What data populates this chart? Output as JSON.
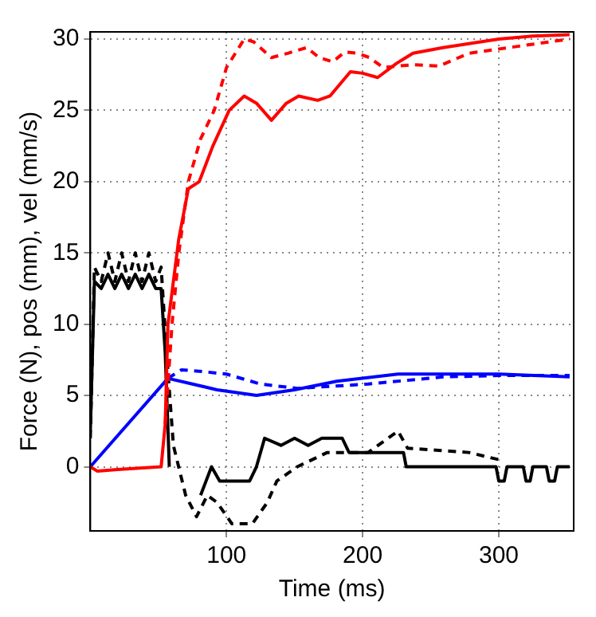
{
  "chart_data": {
    "type": "line",
    "xlabel": "Time (ms)",
    "ylabel": "Force (N), pos (mm), vel (mm/s)",
    "xlim": [
      0,
      355
    ],
    "ylim": [
      -4.5,
      30.5
    ],
    "xticks": [
      100,
      200,
      300
    ],
    "yticks": [
      0,
      5,
      10,
      15,
      20,
      25,
      30
    ],
    "grid": true,
    "legend": false,
    "marker": "none",
    "series": [
      {
        "color": "#ff0000",
        "line_style": "solid",
        "x": [
          0,
          5,
          20,
          52,
          55,
          57,
          65,
          72,
          80,
          90,
          102,
          113,
          122,
          133,
          144,
          153,
          167,
          176,
          191,
          200,
          211,
          225,
          237,
          259,
          280,
          300,
          325,
          352
        ],
        "values": [
          0,
          -0.3,
          -0.2,
          0,
          3,
          10,
          16,
          19.5,
          20,
          22.5,
          25,
          26,
          25.5,
          24.3,
          25.5,
          26,
          25.7,
          26,
          27.7,
          27.6,
          27.3,
          28.3,
          29,
          29.4,
          29.7,
          30,
          30.2,
          30.3
        ]
      },
      {
        "color": "#ff0000",
        "line_style": "dashed",
        "x": [
          55,
          60,
          65,
          72,
          81,
          91,
          100,
          113,
          120,
          133,
          145,
          159,
          168,
          178,
          187,
          196,
          205,
          215,
          237,
          256,
          278,
          315,
          352
        ],
        "values": [
          3,
          10,
          15,
          20,
          23,
          25,
          28,
          30,
          29.8,
          28.7,
          29,
          29.4,
          28.7,
          28.4,
          29.1,
          29,
          28.7,
          28,
          28.2,
          28.1,
          29,
          29.5,
          30
        ]
      },
      {
        "color": "#0000ff",
        "line_style": "solid",
        "x": [
          0,
          57,
          75,
          93,
          122,
          150,
          181,
          226,
          260,
          300,
          352
        ],
        "values": [
          0,
          6.2,
          5.8,
          5.4,
          5,
          5.4,
          6,
          6.5,
          6.5,
          6.5,
          6.3
        ]
      },
      {
        "color": "#0000ff",
        "line_style": "dashed",
        "x": [
          57,
          67,
          80,
          100,
          125,
          152,
          204,
          259,
          300,
          352
        ],
        "values": [
          6.2,
          6.8,
          6.7,
          6.5,
          5.8,
          5.5,
          5.8,
          6.3,
          6.4,
          6.4
        ]
      },
      {
        "color": "#000000",
        "line_style": "solid",
        "x": [
          0,
          3,
          8,
          13,
          18,
          23,
          28,
          33,
          38,
          43,
          48,
          52,
          55,
          58,
          63,
          74,
          81,
          85,
          89,
          95,
          117,
          122,
          128,
          140,
          150,
          160,
          170,
          185,
          190,
          200,
          230,
          232,
          298,
          300,
          304,
          306,
          318,
          320,
          323,
          325,
          335,
          337,
          341,
          343,
          352
        ],
        "values": [
          2.5,
          13,
          12.5,
          13.5,
          12.5,
          13.5,
          12.5,
          13.5,
          12.5,
          13.5,
          12.5,
          12.5,
          8,
          0,
          null,
          null,
          -2,
          -1,
          0,
          -1,
          -1,
          0,
          2,
          1.5,
          2,
          1.5,
          2,
          2,
          1,
          1,
          1,
          0,
          0,
          -1,
          -1,
          0,
          0,
          -1,
          -1,
          0,
          0,
          -1,
          -1,
          0,
          0
        ]
      },
      {
        "color": "#000000",
        "line_style": "dashed",
        "x": [
          0,
          3,
          8,
          13,
          18,
          23,
          28,
          33,
          38,
          43,
          48,
          52,
          56,
          61,
          70,
          78,
          86,
          93,
          104,
          119,
          130,
          137,
          152,
          174,
          204,
          226,
          233,
          278,
          300
        ],
        "values": [
          2,
          14,
          13,
          15,
          13,
          15,
          13,
          15,
          13,
          15,
          13,
          14,
          8,
          1.5,
          -2,
          -3.5,
          -2,
          -2.5,
          -4,
          -4,
          -2.5,
          -1,
          0,
          1,
          1,
          2.5,
          1.3,
          1,
          0.5
        ]
      }
    ]
  }
}
